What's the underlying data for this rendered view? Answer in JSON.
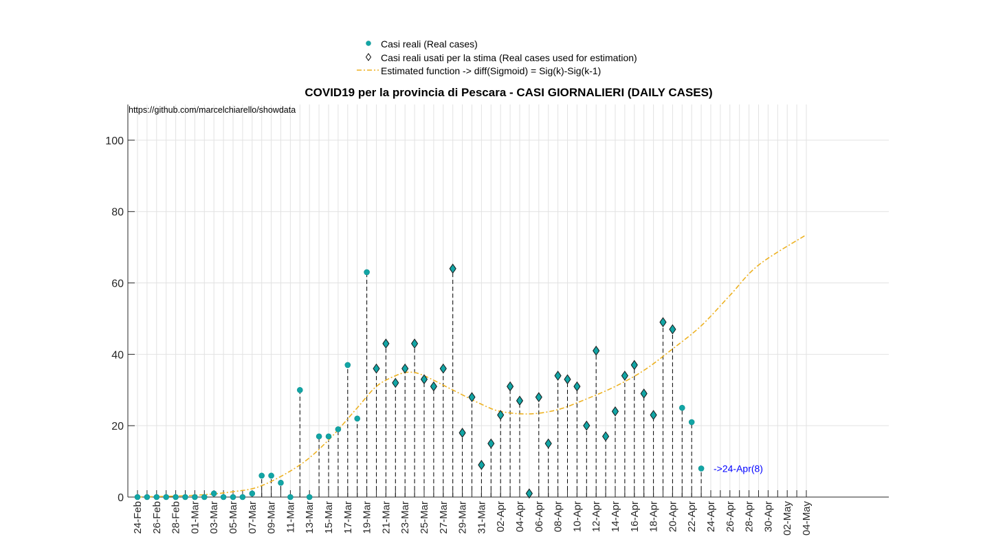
{
  "chart_data": {
    "type": "scatter",
    "title": "COVID19 per la provincia di Pescara - CASI GIORNALIERI (DAILY CASES)",
    "source": "https://github.com/marcelchiarello/showdata",
    "legend": {
      "placement": "top-center",
      "entries": [
        "Casi reali (Real cases)",
        "Casi reali usati per la stima (Real cases used for estimation)",
        "Estimated function -> diff(Sigmoid) = Sig(k)-Sig(k-1)"
      ]
    },
    "xlabel": "",
    "ylabel": "",
    "ylim": [
      0,
      110
    ],
    "y_ticks": [
      0,
      20,
      40,
      60,
      80,
      100
    ],
    "grid": true,
    "x_tick_labels": [
      "24-Feb",
      "26-Feb",
      "28-Feb",
      "01-Mar",
      "03-Mar",
      "05-Mar",
      "07-Mar",
      "09-Mar",
      "11-Mar",
      "13-Mar",
      "15-Mar",
      "17-Mar",
      "19-Mar",
      "21-Mar",
      "23-Mar",
      "25-Mar",
      "27-Mar",
      "29-Mar",
      "31-Mar",
      "02-Apr",
      "04-Apr",
      "06-Apr",
      "08-Apr",
      "10-Apr",
      "12-Apr",
      "14-Apr",
      "16-Apr",
      "18-Apr",
      "20-Apr",
      "22-Apr",
      "24-Apr",
      "26-Apr",
      "28-Apr",
      "30-Apr",
      "02-May",
      "04-May"
    ],
    "series": [
      {
        "name": "Casi reali (Real cases)",
        "start_date": "24-Feb",
        "values": [
          0,
          0,
          0,
          0,
          0,
          0,
          0,
          0,
          1,
          0,
          0,
          0,
          1,
          6,
          6,
          4,
          0,
          30,
          0,
          17,
          17,
          19,
          37,
          22,
          63,
          36,
          43,
          32,
          36,
          43,
          33,
          31,
          36,
          64,
          18,
          28,
          9,
          15,
          23,
          31,
          27,
          1,
          28,
          15,
          34,
          33,
          31,
          20,
          41,
          17,
          24,
          34,
          37,
          29,
          23,
          49,
          47,
          25,
          21,
          8
        ]
      },
      {
        "name": "Casi reali usati per la stima (Real cases used for estimation)",
        "start_date": "20-Mar",
        "values": [
          36,
          43,
          32,
          36,
          43,
          33,
          31,
          36,
          64,
          18,
          28,
          9,
          15,
          23,
          31,
          27,
          1,
          28,
          15,
          34,
          33,
          31,
          20,
          41,
          17,
          24,
          34,
          37,
          29,
          23,
          49,
          47
        ]
      },
      {
        "name": "Estimated function -> diff(Sigmoid) = Sig(k)-Sig(k-1)",
        "knots": [
          [
            0,
            0
          ],
          [
            6,
            0.5
          ],
          [
            10,
            1.5
          ],
          [
            13,
            3.2
          ],
          [
            17,
            9
          ],
          [
            20,
            16
          ],
          [
            23,
            25
          ],
          [
            25,
            31
          ],
          [
            27,
            34
          ],
          [
            28.5,
            35
          ],
          [
            30,
            34
          ],
          [
            33,
            30
          ],
          [
            36,
            26
          ],
          [
            38,
            24
          ],
          [
            41,
            23.3
          ],
          [
            44,
            24.5
          ],
          [
            47,
            27.5
          ],
          [
            50,
            31
          ],
          [
            53,
            35.5
          ],
          [
            56,
            41.5
          ],
          [
            59,
            48
          ],
          [
            62,
            56.5
          ],
          [
            65,
            65
          ],
          [
            70,
            73.5
          ]
        ]
      }
    ],
    "colors": {
      "real": "#12a5a5",
      "marker_edge": "#1a1a1a",
      "estimate": "#edb120",
      "annotation": "#0000ff",
      "grid": "#e2e2e2"
    },
    "annotation": {
      "text": "->24-Apr(8)",
      "date": "24-Apr",
      "value": 8
    }
  }
}
